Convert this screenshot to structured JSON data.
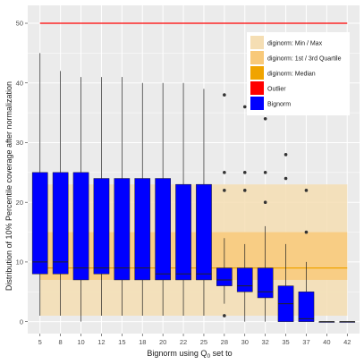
{
  "chart_data": {
    "type": "boxplot",
    "xlabel": "Bignorm using Q",
    "xlabel_sub": "0",
    "xlabel_suffix": " set to",
    "ylabel": "Distribution of 10% Percentile coverage after normalization",
    "ylim": [
      -2,
      53
    ],
    "y_ticks": [
      0,
      10,
      20,
      30,
      40,
      50
    ],
    "categories": [
      "5",
      "8",
      "10",
      "12",
      "15",
      "18",
      "20",
      "22",
      "25",
      "28",
      "30",
      "32",
      "35",
      "37",
      "40",
      "42"
    ],
    "grid": true,
    "legend_position": "top-right",
    "reference": {
      "minmax": [
        1,
        23
      ],
      "quartiles": [
        7,
        15
      ],
      "median": 9,
      "outlier": 50,
      "x_range": [
        1,
        16
      ]
    },
    "boxes": [
      {
        "x": "5",
        "q1": 8,
        "median": 10,
        "q3": 25,
        "whisker_low": 1,
        "whisker_high": 45,
        "outliers": []
      },
      {
        "x": "8",
        "q1": 8,
        "median": 10,
        "q3": 25,
        "whisker_low": 1,
        "whisker_high": 42,
        "outliers": []
      },
      {
        "x": "10",
        "q1": 7,
        "median": 9,
        "q3": 25,
        "whisker_low": 0,
        "whisker_high": 41,
        "outliers": []
      },
      {
        "x": "12",
        "q1": 8,
        "median": 9,
        "q3": 24,
        "whisker_low": 1,
        "whisker_high": 41,
        "outliers": []
      },
      {
        "x": "15",
        "q1": 7,
        "median": 9,
        "q3": 24,
        "whisker_low": 1,
        "whisker_high": 41,
        "outliers": []
      },
      {
        "x": "18",
        "q1": 7,
        "median": 9,
        "q3": 24,
        "whisker_low": 1,
        "whisker_high": 40,
        "outliers": []
      },
      {
        "x": "20",
        "q1": 7,
        "median": 8,
        "q3": 24,
        "whisker_low": 1,
        "whisker_high": 40,
        "outliers": []
      },
      {
        "x": "22",
        "q1": 7,
        "median": 8,
        "q3": 23,
        "whisker_low": 1,
        "whisker_high": 40,
        "outliers": []
      },
      {
        "x": "25",
        "q1": 7,
        "median": 8,
        "q3": 23,
        "whisker_low": 1,
        "whisker_high": 39,
        "outliers": []
      },
      {
        "x": "28",
        "q1": 6,
        "median": 7,
        "q3": 9,
        "whisker_low": 3,
        "whisker_high": 14,
        "outliers": [
          1,
          22,
          25,
          38
        ]
      },
      {
        "x": "30",
        "q1": 5,
        "median": 6,
        "q3": 9,
        "whisker_low": 0,
        "whisker_high": 13,
        "outliers": [
          22,
          25,
          36
        ]
      },
      {
        "x": "32",
        "q1": 4,
        "median": 5,
        "q3": 9,
        "whisker_low": 0,
        "whisker_high": 16,
        "outliers": [
          20,
          25,
          34,
          36
        ]
      },
      {
        "x": "35",
        "q1": 0,
        "median": 3,
        "q3": 6,
        "whisker_low": 0,
        "whisker_high": 13,
        "outliers": [
          24,
          28
        ]
      },
      {
        "x": "37",
        "q1": 0,
        "median": 0.5,
        "q3": 5,
        "whisker_low": 0,
        "whisker_high": 10,
        "outliers": [
          15,
          22
        ]
      },
      {
        "x": "40",
        "q1": 0,
        "median": 0,
        "q3": 0,
        "whisker_low": 0,
        "whisker_high": 0,
        "outliers": []
      },
      {
        "x": "42",
        "q1": 0,
        "median": 0,
        "q3": 0,
        "whisker_low": 0,
        "whisker_high": 0,
        "outliers": []
      }
    ],
    "legend": [
      {
        "label": "diginorm: Min / Max",
        "color": "#f5deb3"
      },
      {
        "label": "diginorm: 1st / 3rd Quartile",
        "color": "#f8c97a"
      },
      {
        "label": "diginorm: Median",
        "color": "#f0a400"
      },
      {
        "label": "Outlier",
        "color": "#ff0000"
      },
      {
        "label": "Bignorm",
        "color": "#0000ff"
      }
    ],
    "colors": {
      "panel": "#ebebeb",
      "grid_major": "#ffffff",
      "minmax_band": "#f5deb3",
      "quartile_band": "#f8c97a",
      "median_line": "#f0a400",
      "outlier_line": "#ff0000",
      "box_fill": "#0000ff",
      "box_line": "#222222"
    }
  }
}
